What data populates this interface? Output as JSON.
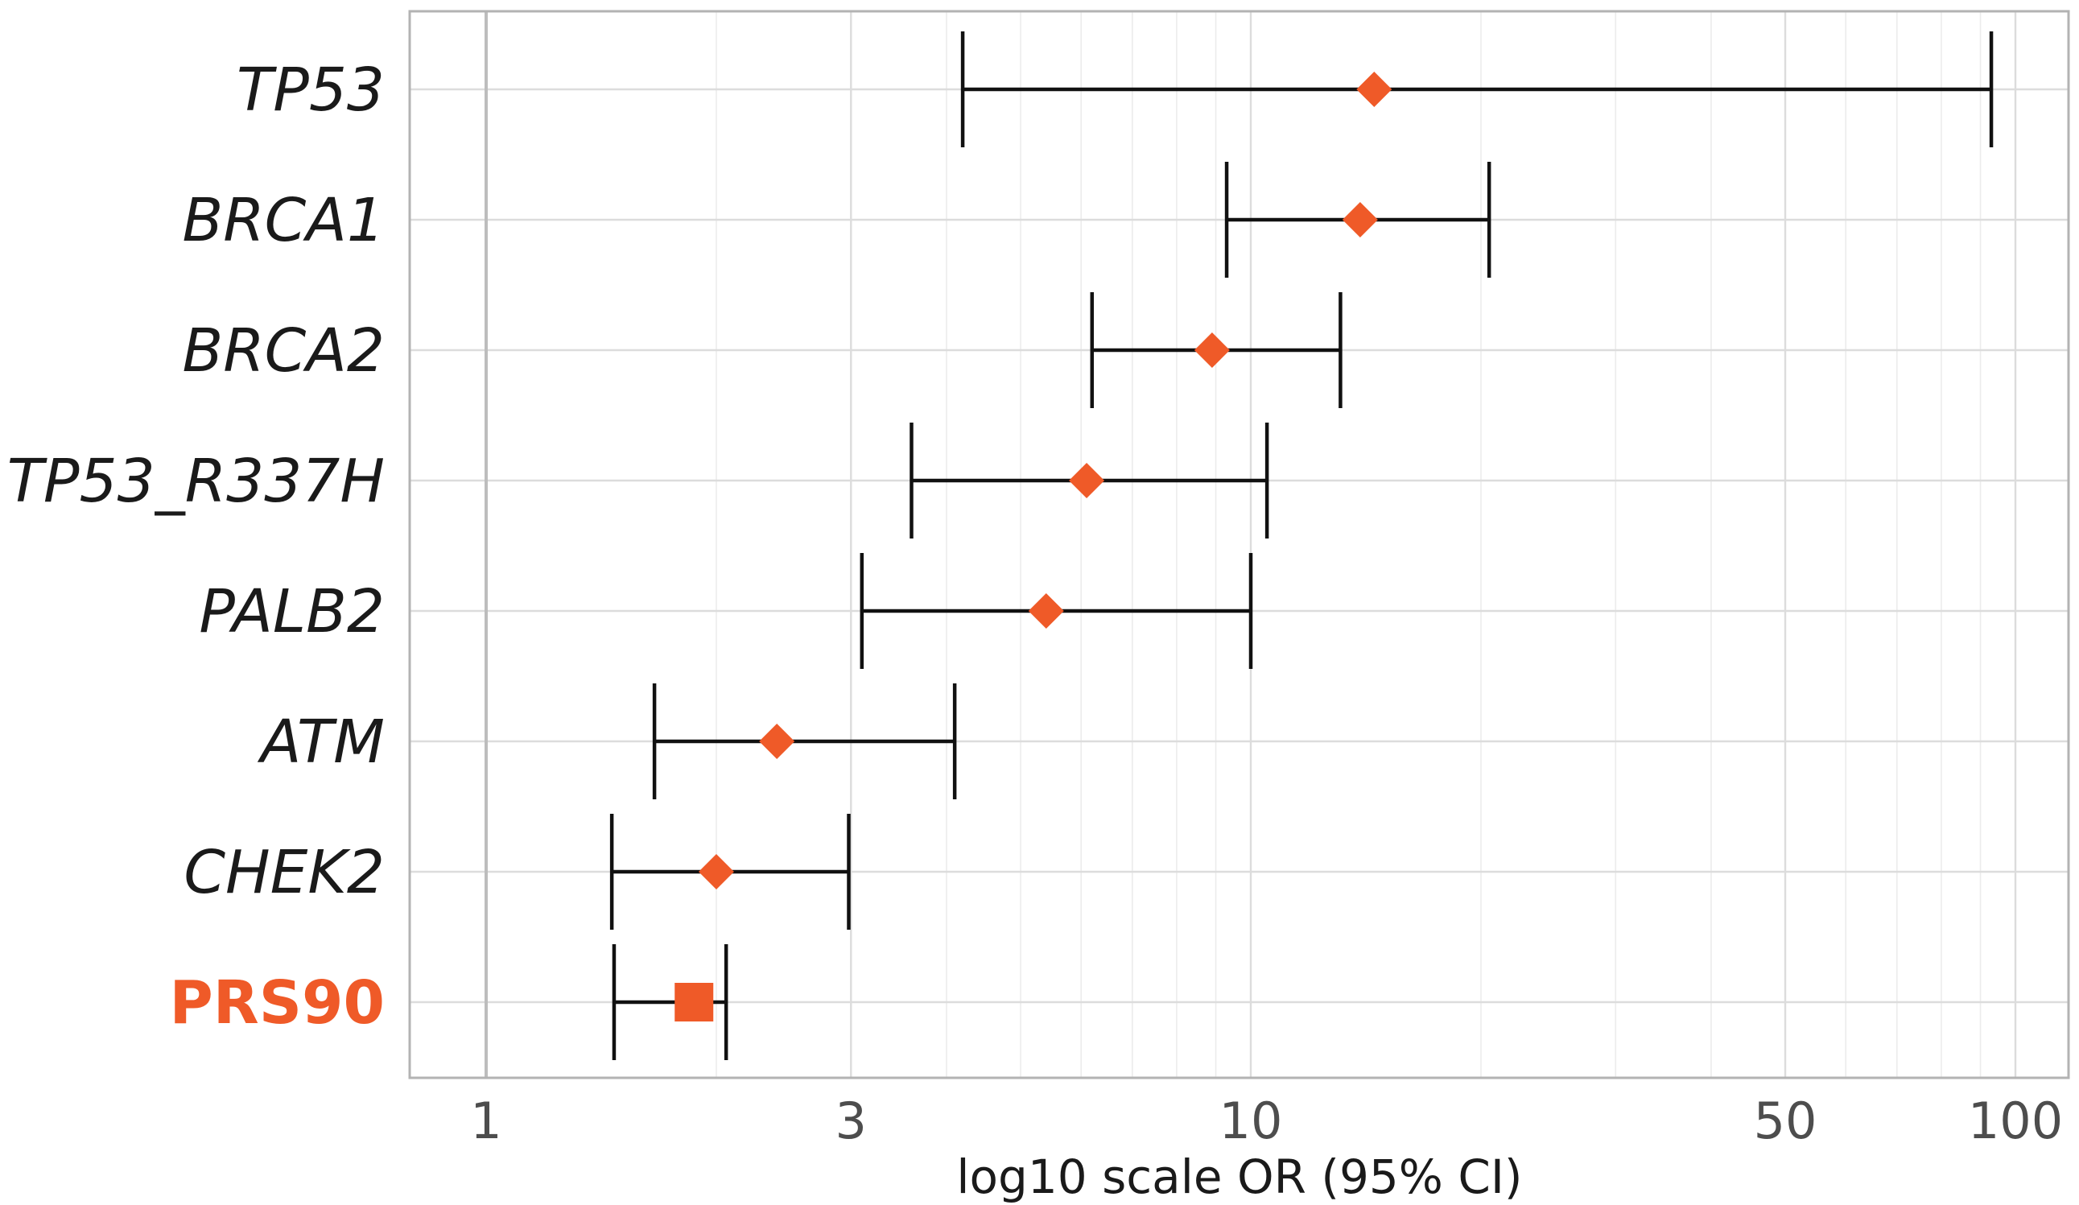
{
  "chart_data": {
    "type": "forest",
    "title": "",
    "xlabel": "log10 scale OR (95% CI)",
    "ylabel": "",
    "x_scale": "log10",
    "xlim": [
      0.9,
      110
    ],
    "x_ticks": [
      1,
      3,
      10,
      50,
      100
    ],
    "x_tick_labels": [
      "1",
      "3",
      "10",
      "50",
      "100"
    ],
    "reference_line": 1,
    "grid": true,
    "point_color": "#ef5a28",
    "highlight_color": "#ef5a28",
    "label_color": "#1a1a1a",
    "rows": [
      {
        "label": "TP53",
        "or": 14.5,
        "lower": 4.2,
        "upper": 93,
        "marker": "diamond",
        "highlight": false
      },
      {
        "label": "BRCA1",
        "or": 13.9,
        "lower": 9.3,
        "upper": 20.5,
        "marker": "diamond",
        "highlight": false
      },
      {
        "label": "BRCA2",
        "or": 8.9,
        "lower": 6.2,
        "upper": 13.1,
        "marker": "diamond",
        "highlight": false
      },
      {
        "label": "TP53_R337H",
        "or": 6.1,
        "lower": 3.6,
        "upper": 10.5,
        "marker": "diamond",
        "highlight": false
      },
      {
        "label": "PALB2",
        "or": 5.4,
        "lower": 3.1,
        "upper": 10.0,
        "marker": "diamond",
        "highlight": false
      },
      {
        "label": "ATM",
        "or": 2.4,
        "lower": 1.66,
        "upper": 4.1,
        "marker": "diamond",
        "highlight": false
      },
      {
        "label": "CHEK2",
        "or": 2.0,
        "lower": 1.46,
        "upper": 2.98,
        "marker": "diamond",
        "highlight": false
      },
      {
        "label": "PRS90",
        "or": 1.87,
        "lower": 1.47,
        "upper": 2.06,
        "marker": "square",
        "highlight": true
      }
    ]
  }
}
